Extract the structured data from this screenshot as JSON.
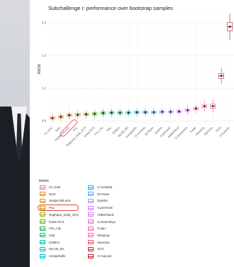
{
  "chart_data": {
    "type": "scatter",
    "title": "Subchallenge I: performance over bootstrap samples",
    "xlabel": "",
    "ylabel": "RMSE",
    "ylim": [
      0.75,
      2.12
    ],
    "yticks": [
      "0.8",
      "1.2",
      "1.6",
      "2.0"
    ],
    "ytick_values": [
      0.8,
      1.2,
      1.6,
      2.0
    ],
    "categories": [
      "ics_bsai",
      "NAD",
      "SingleCellLand",
      "PoL",
      "Raghava_India_SCS",
      "hulab.SCS",
      "Fire_Lily",
      "Otar",
      "IGIIBmi",
      "INLAB_BS",
      "orangeballs",
      "X.monkala",
      "DUTeam",
      "hipatha",
      "X.jameswil",
      "AhBerRand",
      "X.dreamskys",
      "X.pqu",
      "Sleeping",
      "SamGao",
      "SCG",
      "X.Huiyuan"
    ],
    "values": [
      0.835,
      0.85,
      0.87,
      0.875,
      0.88,
      0.885,
      0.895,
      0.9,
      0.9,
      0.9,
      0.905,
      0.905,
      0.905,
      0.91,
      0.91,
      0.915,
      0.93,
      0.95,
      0.98,
      0.98,
      1.35,
      1.95
    ],
    "spread": [
      0.03,
      0.03,
      0.03,
      0.03,
      0.03,
      0.03,
      0.03,
      0.03,
      0.03,
      0.03,
      0.03,
      0.03,
      0.03,
      0.03,
      0.03,
      0.03,
      0.035,
      0.035,
      0.04,
      0.05,
      0.06,
      0.1
    ],
    "colors": [
      "#f8766d",
      "#e7861b",
      "#d39200",
      "#b79f00",
      "#93aa00",
      "#5eb300",
      "#00ba38",
      "#00bf74",
      "#00c19f",
      "#00bfc4",
      "#00b9e3",
      "#00adfa",
      "#619cff",
      "#9590ff",
      "#c77cff",
      "#db72fb",
      "#f564e3",
      "#ff61c3",
      "#ff6a98",
      "#e8505b",
      "#d0213b",
      "#c1121f"
    ],
    "highlight_category": "SingleCellLand",
    "grid": true,
    "legend_position": "bottom"
  },
  "legend": {
    "title": "teams",
    "items": [
      "ics_bsai",
      "NAD",
      "SingleCellLand",
      "PoL",
      "Raghava_India_SCS",
      "hulab.SCS",
      "Fire_Lily",
      "Otar",
      "IGIIBmi",
      "INLAB_BS",
      "orangeballs",
      "X.monkala",
      "DUTeam",
      "hipatha",
      "X.jameswil",
      "AhBerRand",
      "X.dreamskys",
      "X.pqu",
      "Sleeping",
      "SamGao",
      "SCG",
      "X.Huiyuan"
    ]
  }
}
